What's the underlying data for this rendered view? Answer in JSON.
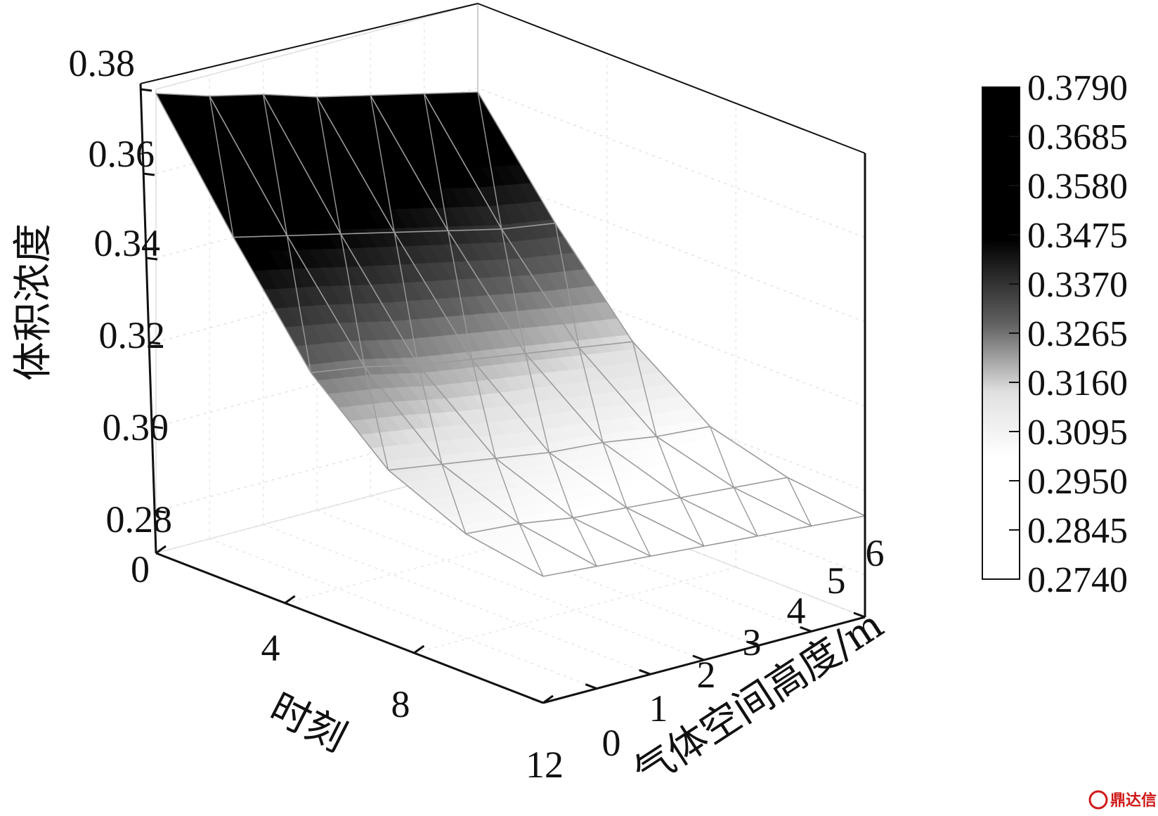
{
  "chart_data": {
    "type": "surface",
    "zlabel": "体积浓度",
    "xlabel": "时刻",
    "ylabel": "气体空间高度/m",
    "z_ticks": [
      "0",
      "0.28",
      "0.30",
      "0.32",
      "0.34",
      "0.36",
      "0.38"
    ],
    "time_ticks": [
      "0",
      "4",
      "8",
      "12"
    ],
    "height_ticks": [
      "0",
      "1",
      "2",
      "3",
      "4",
      "5",
      "6"
    ],
    "zlim": [
      0.27,
      0.38
    ],
    "time_range": [
      0,
      12
    ],
    "height_range": [
      0,
      6
    ],
    "grid": true,
    "colorbar": {
      "labels": [
        "0.3790",
        "0.3685",
        "0.3580",
        "0.3475",
        "0.3370",
        "0.3265",
        "0.3160",
        "0.3095",
        "0.2950",
        "0.2845",
        "0.2740"
      ],
      "colormap": "black-to-white",
      "location": "right"
    },
    "surface": {
      "time": [
        0,
        2.4,
        4.8,
        7.2,
        9.6,
        12
      ],
      "height": [
        0,
        1,
        2,
        3,
        4,
        5,
        6
      ],
      "z": [
        [
          0.379,
          0.375,
          0.372,
          0.368,
          0.365,
          0.362,
          0.359
        ],
        [
          0.352,
          0.349,
          0.346,
          0.343,
          0.34,
          0.337,
          0.335
        ],
        [
          0.327,
          0.325,
          0.322,
          0.32,
          0.318,
          0.316,
          0.314
        ],
        [
          0.311,
          0.309,
          0.307,
          0.305,
          0.304,
          0.302,
          0.301
        ],
        [
          0.303,
          0.302,
          0.3,
          0.299,
          0.298,
          0.297,
          0.296
        ],
        [
          0.3,
          0.299,
          0.298,
          0.297,
          0.296,
          0.295,
          0.294
        ]
      ]
    }
  },
  "watermark": "鼎达信"
}
